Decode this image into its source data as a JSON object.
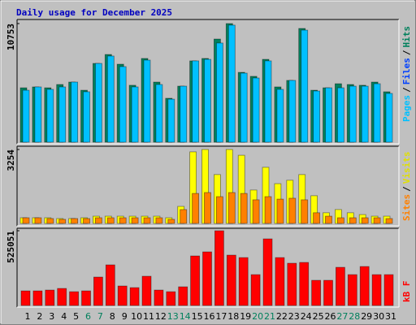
{
  "title": "Daily usage for December 2025",
  "chart_data": [
    {
      "type": "bar",
      "ylim": [
        0,
        10753
      ],
      "yticks": [
        10753
      ],
      "legend": [
        {
          "text": "Pages",
          "color": "#00c0ff"
        },
        {
          "text": "/",
          "color": "#000000"
        },
        {
          "text": "Files",
          "color": "#0040ff"
        },
        {
          "text": "/",
          "color": "#000000"
        },
        {
          "text": "Hits",
          "color": "#00805c"
        }
      ],
      "series": [
        {
          "color": "#00805c",
          "values": [
            4930,
            5010,
            4930,
            5230,
            5450,
            4710,
            7140,
            7950,
            7070,
            5160,
            7590,
            5450,
            3980,
            5080,
            7370,
            7590,
            9350,
            10753,
            6330,
            5970,
            7510,
            5010,
            5600,
            10310,
            4710,
            4930,
            5300,
            5230,
            5160,
            5450,
            4570
          ]
        },
        {
          "color": "#00c0ff",
          "values": [
            4710,
            5010,
            4790,
            5010,
            5450,
            4570,
            7140,
            7810,
            6850,
            5010,
            7440,
            5230,
            3900,
            5080,
            7370,
            7510,
            8990,
            10610,
            6260,
            5820,
            7370,
            4790,
            5600,
            10160,
            4640,
            4930,
            4930,
            5080,
            5080,
            5300,
            4420
          ]
        }
      ]
    },
    {
      "type": "bar",
      "ylim": [
        0,
        3254
      ],
      "yticks": [
        3254
      ],
      "legend": [
        {
          "text": "Sites",
          "color": "#ff8000"
        },
        {
          "text": "/",
          "color": "#000000"
        },
        {
          "text": "Visits",
          "color": "#e0e000"
        }
      ],
      "series": [
        {
          "color": "#ffff00",
          "values": [
            250,
            250,
            250,
            215,
            215,
            250,
            320,
            320,
            320,
            320,
            320,
            320,
            250,
            750,
            3150,
            3254,
            2150,
            3254,
            3000,
            1470,
            2470,
            1750,
            1900,
            2150,
            1220,
            470,
            610,
            470,
            390,
            320,
            320
          ]
        },
        {
          "color": "#ff8000",
          "values": [
            250,
            250,
            215,
            180,
            215,
            215,
            250,
            250,
            250,
            250,
            250,
            250,
            180,
            610,
            1320,
            1360,
            1180,
            1360,
            1320,
            1040,
            1180,
            1070,
            1110,
            1040,
            470,
            320,
            250,
            250,
            250,
            250,
            215
          ]
        }
      ]
    },
    {
      "type": "bar",
      "ylim": [
        0,
        525051
      ],
      "yticks": [
        525051
      ],
      "legend": [
        {
          "text": "kB F",
          "color": "#ff0000"
        }
      ],
      "categories": [
        "1",
        "2",
        "3",
        "4",
        "5",
        "6",
        "7",
        "8",
        "9",
        "10",
        "11",
        "12",
        "13",
        "14",
        "15",
        "16",
        "17",
        "18",
        "19",
        "20",
        "21",
        "22",
        "23",
        "24",
        "25",
        "26",
        "27",
        "28",
        "29",
        "30",
        "31"
      ],
      "category_colors": [
        "#000000",
        "#000000",
        "#000000",
        "#000000",
        "#000000",
        "#00805c",
        "#00805c",
        "#000000",
        "#000000",
        "#000000",
        "#000000",
        "#000000",
        "#00805c",
        "#00805c",
        "#000000",
        "#000000",
        "#000000",
        "#000000",
        "#000000",
        "#00805c",
        "#00805c",
        "#000000",
        "#000000",
        "#000000",
        "#000000",
        "#000000",
        "#00805c",
        "#00805c",
        "#000000",
        "#000000",
        "#000000"
      ],
      "series": [
        {
          "color": "#ff0000",
          "values": [
            102700,
            102700,
            108400,
            119800,
            97000,
            102700,
            199700,
            285400,
            137000,
            125600,
            205500,
            108400,
            97000,
            131300,
            348100,
            376700,
            525051,
            353800,
            336700,
            216900,
            468000,
            336700,
            296800,
            302500,
            176900,
            176900,
            268200,
            216900,
            273900,
            216900,
            216900
          ]
        }
      ]
    }
  ]
}
